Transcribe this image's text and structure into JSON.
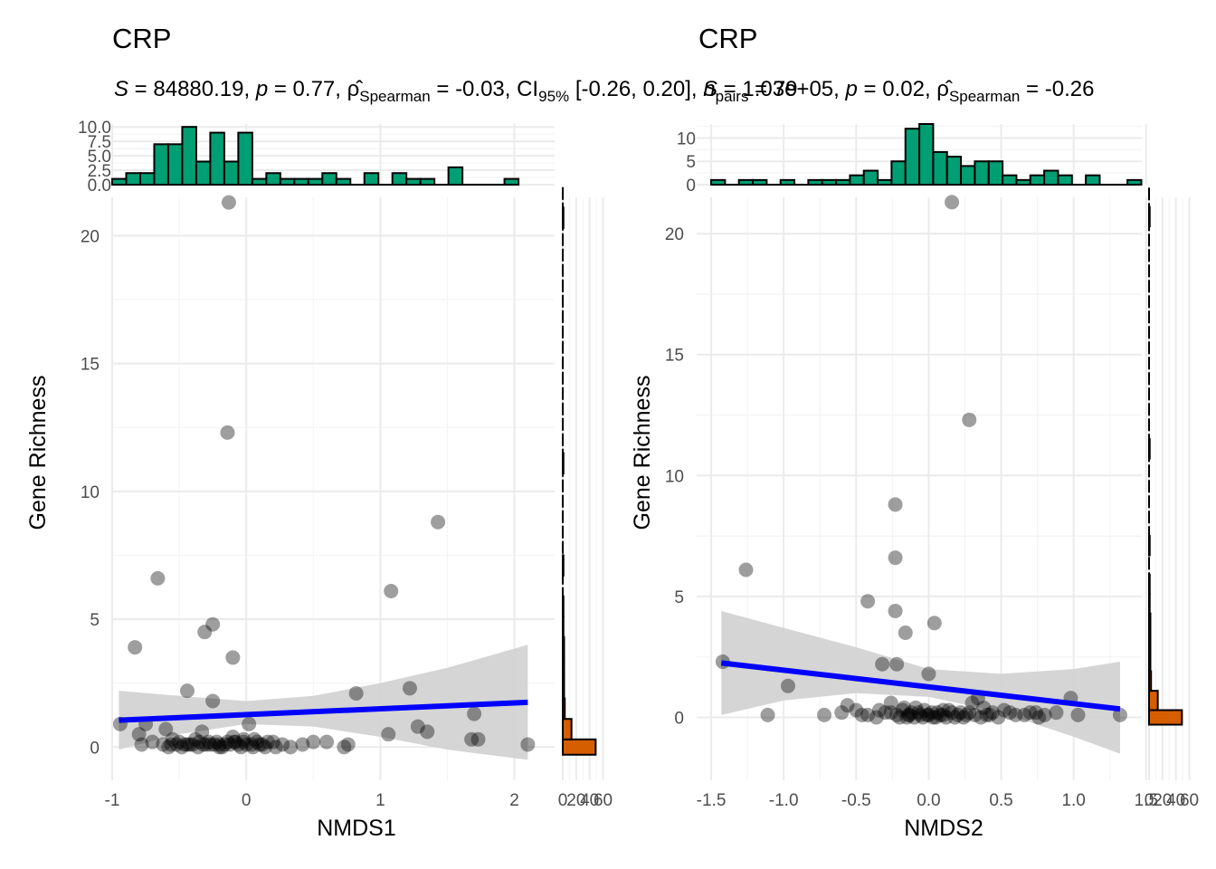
{
  "colors": {
    "top_hist": "#009E73",
    "side_hist": "#D55E00",
    "regression": "#0000FF",
    "ribbon": "#D3D3D3",
    "points": "#000000"
  },
  "chart_data": [
    {
      "type": "scatter",
      "title": "CRP",
      "subtitle": {
        "stat_name": "S",
        "stat_value": "84880.19",
        "p_value": "0.77",
        "rho_label": "Spearman",
        "rho_value": "-0.03",
        "ci_label": "95%",
        "ci_value": "[-0.26, 0.20]",
        "n_label": "pairs",
        "n_value": "79"
      },
      "xlabel": "NMDS1",
      "ylabel": "Gene Richness",
      "xlim": [
        -1.0,
        2.3
      ],
      "ylim": [
        -1.3,
        21.5
      ],
      "x_ticks": [
        "-1",
        "0",
        "1",
        "2"
      ],
      "y_ticks": [
        "0",
        "5",
        "10",
        "15",
        "20"
      ],
      "grid": true,
      "points": [
        [
          -0.13,
          21.3
        ],
        [
          -0.14,
          12.3
        ],
        [
          -0.66,
          6.6
        ],
        [
          -0.83,
          3.9
        ],
        [
          -0.25,
          4.8
        ],
        [
          -0.31,
          4.5
        ],
        [
          -0.1,
          3.5
        ],
        [
          1.08,
          6.1
        ],
        [
          1.43,
          8.8
        ],
        [
          -0.44,
          2.2
        ],
        [
          -0.25,
          1.8
        ],
        [
          0.82,
          2.1
        ],
        [
          1.22,
          2.3
        ],
        [
          1.7,
          1.3
        ],
        [
          -0.94,
          0.9
        ],
        [
          -0.75,
          0.9
        ],
        [
          -0.8,
          0.5
        ],
        [
          -0.6,
          0.7
        ],
        [
          -0.55,
          0.3
        ],
        [
          -0.5,
          0.2
        ],
        [
          -0.46,
          0.1
        ],
        [
          -0.42,
          0.1
        ],
        [
          -0.38,
          0.3
        ],
        [
          -0.33,
          0.6
        ],
        [
          -0.28,
          0.2
        ],
        [
          -0.24,
          0.1
        ],
        [
          -0.2,
          0.0
        ],
        [
          -0.16,
          0.1
        ],
        [
          -0.1,
          0.4
        ],
        [
          -0.06,
          0.1
        ],
        [
          -0.02,
          0.2
        ],
        [
          0.02,
          0.9
        ],
        [
          0.06,
          0.3
        ],
        [
          0.1,
          0.1
        ],
        [
          0.14,
          0.0
        ],
        [
          0.2,
          0.2
        ],
        [
          0.27,
          0.1
        ],
        [
          0.33,
          0.0
        ],
        [
          0.42,
          0.1
        ],
        [
          0.5,
          0.2
        ],
        [
          0.6,
          0.2
        ],
        [
          0.73,
          0.0
        ],
        [
          0.76,
          0.1
        ],
        [
          1.06,
          0.5
        ],
        [
          1.28,
          0.8
        ],
        [
          1.35,
          0.6
        ],
        [
          1.68,
          0.3
        ],
        [
          1.73,
          0.3
        ],
        [
          2.1,
          0.1
        ],
        [
          -0.78,
          0.1
        ],
        [
          -0.62,
          0.1
        ],
        [
          -0.58,
          0.0
        ],
        [
          -0.52,
          0.1
        ],
        [
          -0.4,
          0.1
        ],
        [
          -0.36,
          0.0
        ],
        [
          -0.3,
          0.1
        ],
        [
          -0.22,
          0.2
        ],
        [
          -0.18,
          0.0
        ],
        [
          -0.12,
          0.1
        ],
        [
          -0.08,
          0.2
        ],
        [
          -0.04,
          0.0
        ],
        [
          0.0,
          0.1
        ],
        [
          0.04,
          0.1
        ],
        [
          0.08,
          0.2
        ],
        [
          0.12,
          0.1
        ],
        [
          -0.48,
          0.0
        ],
        [
          -0.44,
          0.1
        ],
        [
          -0.35,
          0.2
        ],
        [
          -0.27,
          0.1
        ],
        [
          -0.2,
          0.1
        ],
        [
          -0.14,
          0.2
        ],
        [
          0.05,
          0.0
        ],
        [
          -0.02,
          0.3
        ],
        [
          0.16,
          0.2
        ],
        [
          -0.56,
          0.1
        ],
        [
          -0.7,
          0.2
        ],
        [
          0.22,
          0.0
        ],
        [
          -0.09,
          0.2
        ],
        [
          -0.32,
          0.1
        ]
      ],
      "fit": {
        "x": [
          -0.95,
          2.1
        ],
        "y": [
          1.05,
          1.75
        ]
      },
      "ribbon": {
        "x": [
          -0.95,
          -0.5,
          0.0,
          0.5,
          1.0,
          1.5,
          2.1
        ],
        "lower": [
          -0.1,
          0.5,
          0.9,
          0.8,
          0.4,
          -0.1,
          -0.5
        ],
        "upper": [
          2.2,
          2.0,
          1.8,
          2.0,
          2.5,
          3.1,
          4.0
        ]
      },
      "top_histogram": {
        "ylim": [
          0,
          10.5
        ],
        "y_ticks": [
          "0.0",
          "2.5",
          "5.0",
          "7.5",
          "10.0"
        ],
        "bin_start": -1.0,
        "bin_width": 0.1045,
        "counts": [
          1,
          2,
          2,
          7,
          7,
          10,
          4,
          9,
          4,
          9,
          1,
          2,
          1,
          1,
          1,
          2,
          1,
          0,
          2,
          0,
          2,
          1,
          1,
          0,
          3,
          0,
          0,
          0,
          1
        ]
      },
      "side_histogram": {
        "x_ticks": [
          "0",
          "20",
          "40",
          "60"
        ],
        "bin_edges": [
          -0.3,
          0.3,
          1.1,
          1.9,
          2.7,
          3.5,
          4.3,
          5.1,
          5.9,
          6.7,
          7.5,
          8.3,
          9.1,
          9.9,
          10.7,
          11.5,
          12.3,
          13.1,
          13.9,
          14.7,
          15.5,
          16.3,
          17.1,
          17.9,
          18.7,
          19.5,
          20.3,
          21.1,
          21.9
        ],
        "counts": [
          49,
          13,
          3,
          2,
          2,
          2,
          1,
          1,
          0,
          1,
          0,
          0,
          0,
          0,
          1,
          0,
          0,
          0,
          0,
          0,
          0,
          0,
          0,
          0,
          0,
          0,
          1,
          0
        ],
        "xlim": [
          0,
          62
        ]
      }
    },
    {
      "type": "scatter",
      "title": "CRP",
      "subtitle": {
        "stat_name": "S",
        "stat_value": "1.03e+05",
        "p_value": "0.02",
        "rho_label": "Spearman",
        "rho_value": "-0.26",
        "ci_label": "95%",
        "ci_value": "",
        "n_label": "pairs",
        "n_value": ""
      },
      "xlabel": "NMDS2",
      "ylabel": "Gene Richness",
      "xlim": [
        -1.6,
        1.47
      ],
      "ylim": [
        -2.6,
        21.5
      ],
      "x_ticks": [
        "-1.5",
        "-1.0",
        "-0.5",
        "0.0",
        "0.5",
        "1.0",
        "1.5"
      ],
      "y_ticks": [
        "0",
        "5",
        "10",
        "15",
        "20"
      ],
      "grid": true,
      "points": [
        [
          0.16,
          21.3
        ],
        [
          0.28,
          12.3
        ],
        [
          -0.23,
          8.8
        ],
        [
          -1.26,
          6.1
        ],
        [
          -0.23,
          6.6
        ],
        [
          -0.42,
          4.8
        ],
        [
          -0.23,
          4.4
        ],
        [
          0.04,
          3.9
        ],
        [
          -0.16,
          3.5
        ],
        [
          -0.32,
          2.2
        ],
        [
          -0.22,
          2.2
        ],
        [
          0.0,
          1.8
        ],
        [
          -1.42,
          2.3
        ],
        [
          -0.97,
          1.3
        ],
        [
          0.98,
          0.8
        ],
        [
          -1.11,
          0.1
        ],
        [
          -0.72,
          0.1
        ],
        [
          -0.6,
          0.2
        ],
        [
          -0.56,
          0.5
        ],
        [
          -0.5,
          0.3
        ],
        [
          -0.46,
          0.1
        ],
        [
          -0.42,
          0.1
        ],
        [
          -0.36,
          0.0
        ],
        [
          -0.3,
          0.2
        ],
        [
          -0.26,
          0.6
        ],
        [
          -0.22,
          0.1
        ],
        [
          -0.18,
          0.3
        ],
        [
          -0.15,
          0.0
        ],
        [
          -0.12,
          0.2
        ],
        [
          -0.09,
          0.4
        ],
        [
          -0.06,
          0.1
        ],
        [
          -0.03,
          0.3
        ],
        [
          0.0,
          0.1
        ],
        [
          0.03,
          0.0
        ],
        [
          0.06,
          0.2
        ],
        [
          0.1,
          0.1
        ],
        [
          0.14,
          0.3
        ],
        [
          0.18,
          0.0
        ],
        [
          0.22,
          0.2
        ],
        [
          0.26,
          0.1
        ],
        [
          0.3,
          0.6
        ],
        [
          0.34,
          0.8
        ],
        [
          0.38,
          0.4
        ],
        [
          0.44,
          0.2
        ],
        [
          0.52,
          0.3
        ],
        [
          0.6,
          0.1
        ],
        [
          0.7,
          0.2
        ],
        [
          0.8,
          0.1
        ],
        [
          0.88,
          0.2
        ],
        [
          1.03,
          0.1
        ],
        [
          1.32,
          0.1
        ],
        [
          -0.2,
          0.0
        ],
        [
          -0.14,
          0.1
        ],
        [
          -0.1,
          0.0
        ],
        [
          -0.07,
          0.2
        ],
        [
          -0.04,
          0.0
        ],
        [
          -0.01,
          0.1
        ],
        [
          0.02,
          0.2
        ],
        [
          0.05,
          0.0
        ],
        [
          0.08,
          0.1
        ],
        [
          0.12,
          0.0
        ],
        [
          0.16,
          0.2
        ],
        [
          0.2,
          0.1
        ],
        [
          0.24,
          0.0
        ],
        [
          0.32,
          0.1
        ],
        [
          0.36,
          0.0
        ],
        [
          0.42,
          0.1
        ],
        [
          0.48,
          0.0
        ],
        [
          0.56,
          0.2
        ],
        [
          0.66,
          0.1
        ],
        [
          0.76,
          0.0
        ],
        [
          -0.26,
          0.2
        ],
        [
          -0.17,
          0.4
        ],
        [
          -0.13,
          0.1
        ],
        [
          0.1,
          0.3
        ],
        [
          0.4,
          0.1
        ],
        [
          0.74,
          0.2
        ],
        [
          -0.34,
          0.3
        ],
        [
          0.28,
          0.2
        ]
      ],
      "fit": {
        "x": [
          -1.43,
          1.32
        ],
        "y": [
          2.25,
          0.35
        ]
      },
      "ribbon": {
        "x": [
          -1.43,
          -1.0,
          -0.5,
          0.0,
          0.5,
          1.0,
          1.32
        ],
        "lower": [
          0.1,
          0.7,
          1.0,
          0.85,
          0.2,
          -0.8,
          -1.5
        ],
        "upper": [
          4.4,
          3.7,
          2.9,
          2.0,
          1.8,
          2.0,
          2.3
        ]
      },
      "top_histogram": {
        "ylim": [
          0,
          13
        ],
        "y_ticks": [
          "0",
          "5",
          "10"
        ],
        "bin_start": -1.5,
        "bin_width": 0.0957,
        "counts": [
          1,
          0,
          1,
          1,
          0,
          1,
          0,
          1,
          1,
          1,
          2,
          3,
          1,
          5,
          12,
          13,
          7,
          6,
          4,
          5,
          5,
          2,
          1,
          2,
          3,
          2,
          0,
          2,
          0,
          0,
          1
        ]
      },
      "side_histogram": {
        "x_ticks": [
          "0",
          "20",
          "40",
          "60"
        ],
        "bin_edges": [
          -0.3,
          0.3,
          1.1,
          1.9,
          2.7,
          3.5,
          4.3,
          5.1,
          5.9,
          6.7,
          7.5,
          8.3,
          9.1,
          9.9,
          10.7,
          11.5,
          12.3,
          13.1,
          13.9,
          14.7,
          15.5,
          16.3,
          17.1,
          17.9,
          18.7,
          19.5,
          20.3,
          21.1,
          21.9
        ],
        "counts": [
          49,
          13,
          3,
          2,
          2,
          2,
          1,
          1,
          0,
          1,
          0,
          0,
          0,
          0,
          1,
          0,
          0,
          0,
          0,
          0,
          0,
          0,
          0,
          0,
          0,
          0,
          1,
          0
        ],
        "xlim": [
          0,
          62
        ]
      }
    }
  ]
}
